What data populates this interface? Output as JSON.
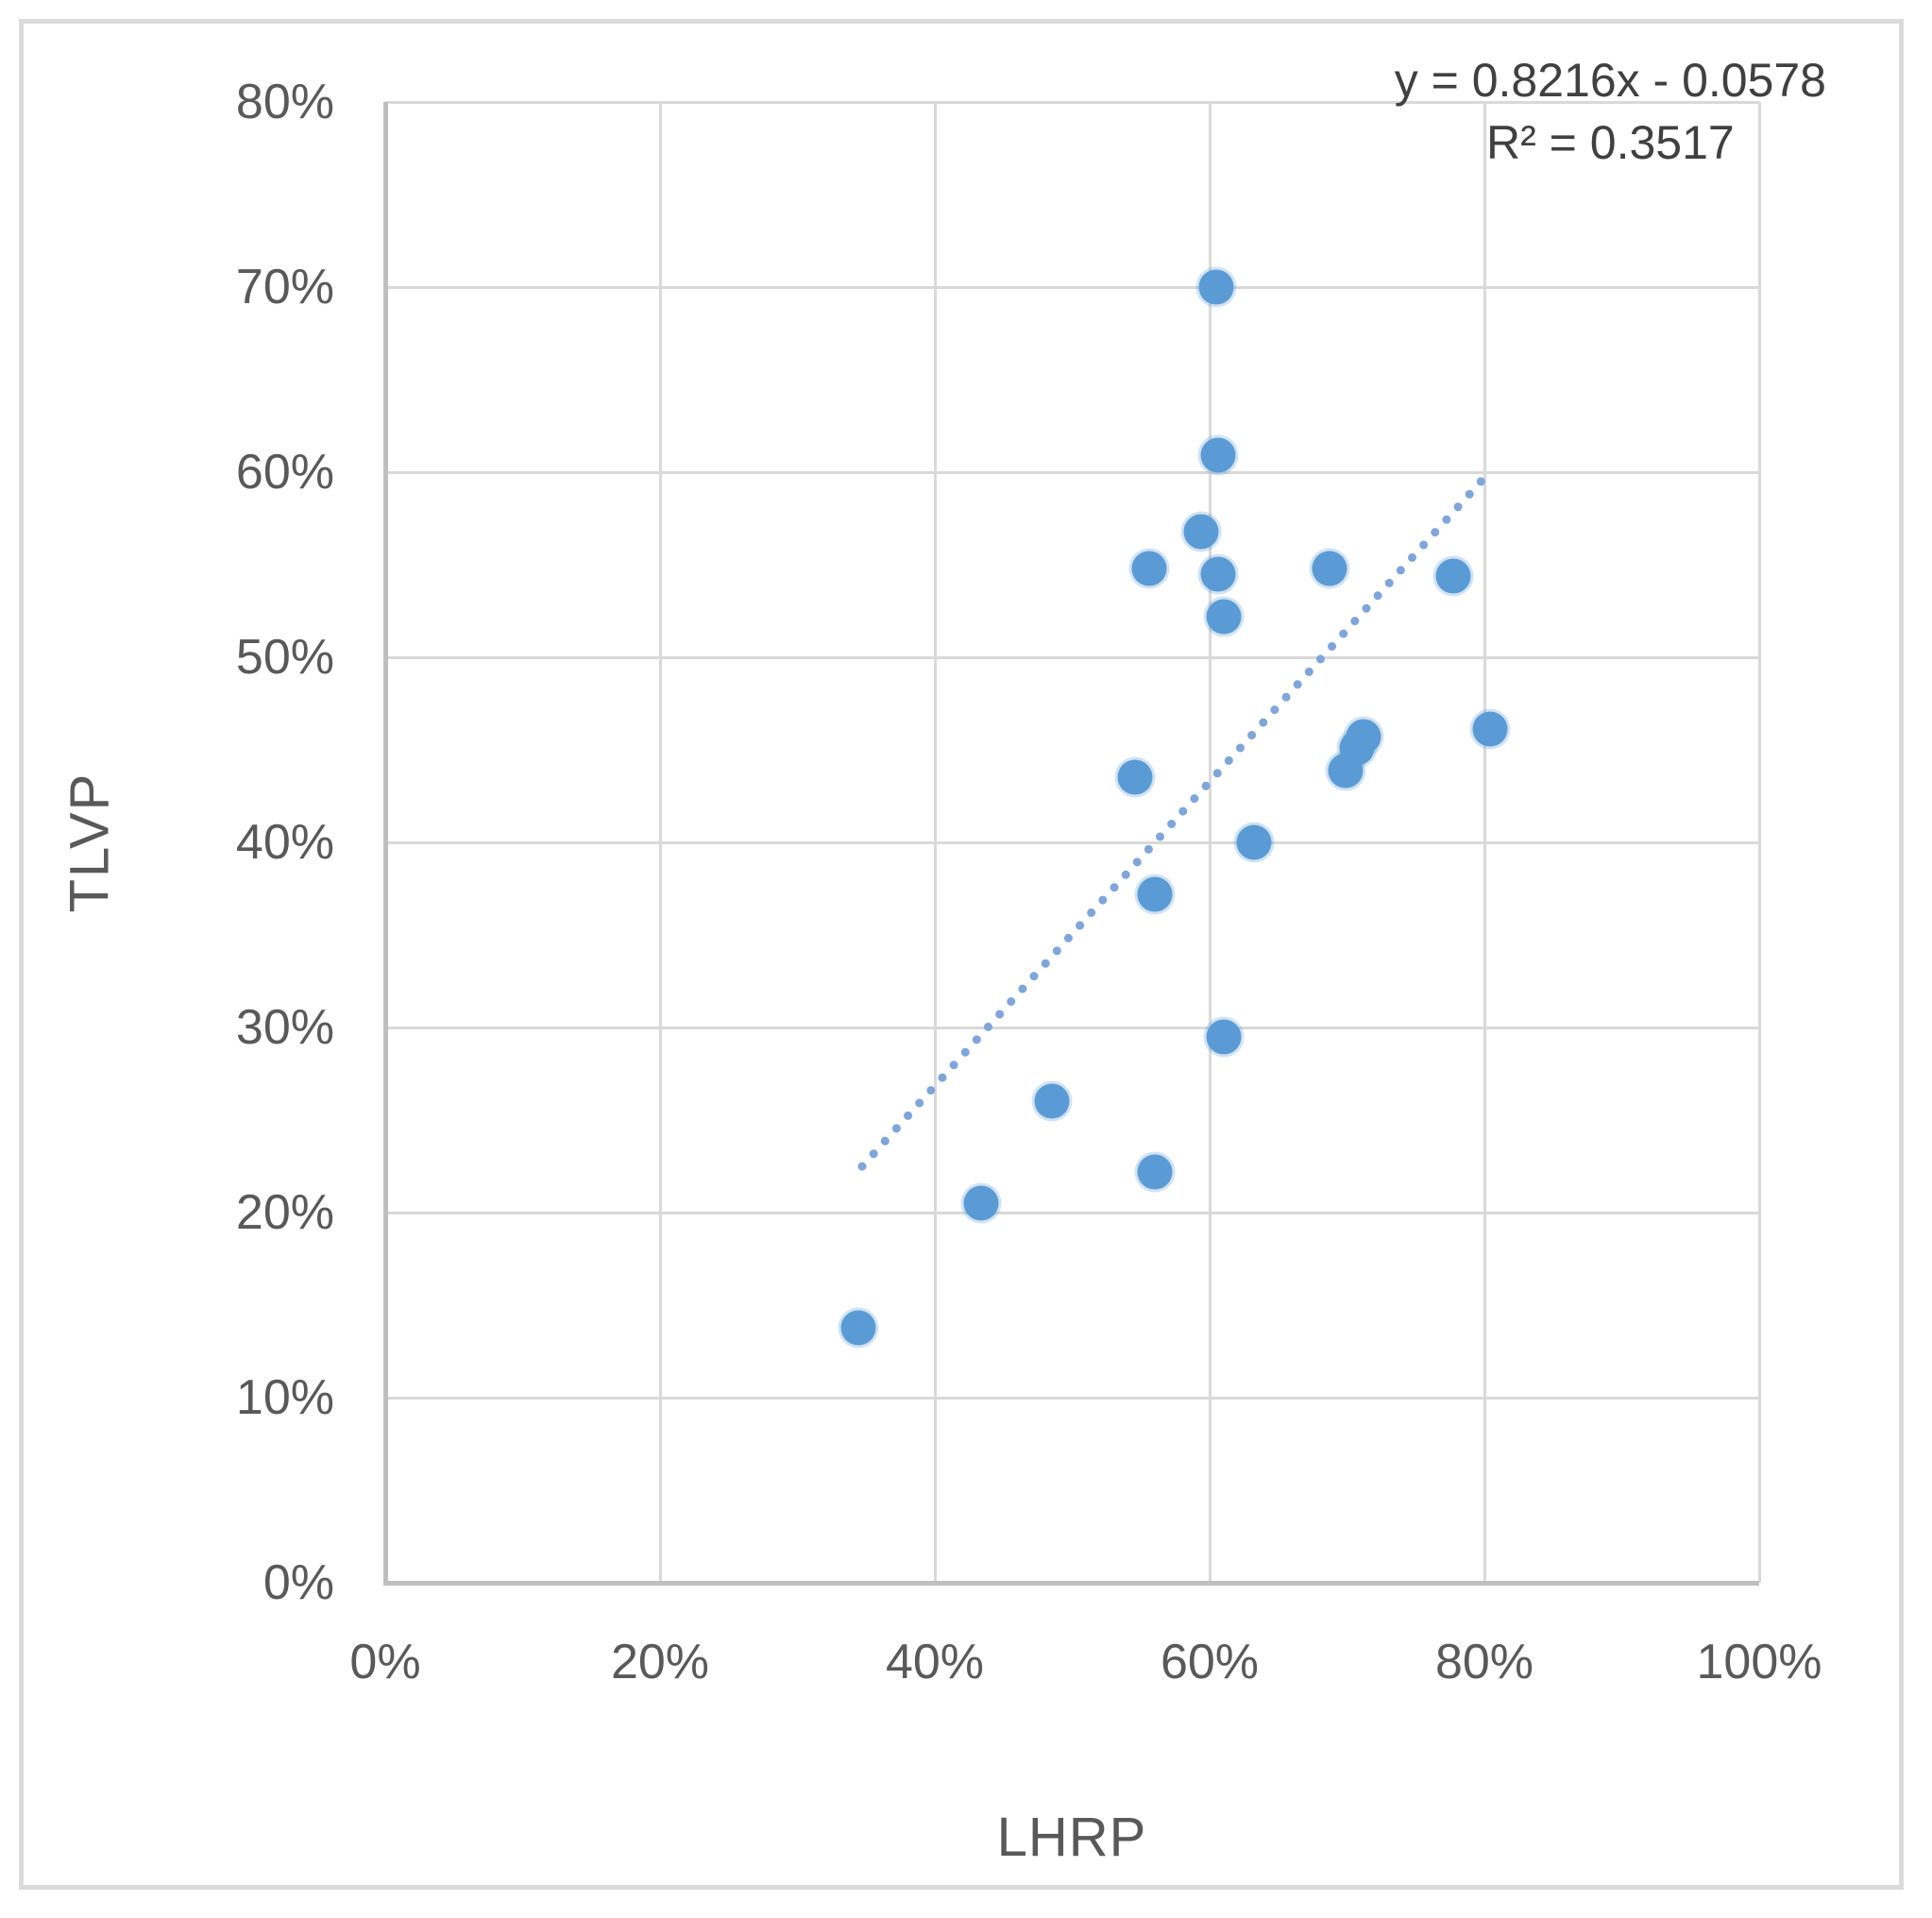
{
  "chart_data": {
    "type": "scatter",
    "xlabel": "LHRP",
    "ylabel": "TLVP",
    "x_ticks": [
      "0%",
      "20%",
      "40%",
      "60%",
      "80%",
      "100%"
    ],
    "y_ticks": [
      "0%",
      "10%",
      "20%",
      "30%",
      "40%",
      "50%",
      "60%",
      "70%",
      "80%"
    ],
    "xlim": [
      0,
      100
    ],
    "ylim": [
      0,
      80
    ],
    "grid": true,
    "legend_position": "none",
    "points": [
      {
        "x": 60.5,
        "y": 70.0
      },
      {
        "x": 60.6,
        "y": 60.9
      },
      {
        "x": 59.4,
        "y": 56.8
      },
      {
        "x": 55.6,
        "y": 54.8
      },
      {
        "x": 60.6,
        "y": 54.5
      },
      {
        "x": 68.7,
        "y": 54.8
      },
      {
        "x": 77.7,
        "y": 54.4
      },
      {
        "x": 61.0,
        "y": 52.2
      },
      {
        "x": 54.6,
        "y": 43.5
      },
      {
        "x": 63.2,
        "y": 40.0
      },
      {
        "x": 56.0,
        "y": 37.2
      },
      {
        "x": 61.0,
        "y": 29.5
      },
      {
        "x": 69.9,
        "y": 43.9
      },
      {
        "x": 70.7,
        "y": 45.1
      },
      {
        "x": 71.2,
        "y": 45.7
      },
      {
        "x": 80.4,
        "y": 46.1
      },
      {
        "x": 48.5,
        "y": 26.0
      },
      {
        "x": 56.0,
        "y": 22.2
      },
      {
        "x": 43.4,
        "y": 20.5
      },
      {
        "x": 34.4,
        "y": 13.8
      }
    ],
    "trendline": {
      "style": "dotted",
      "slope": 0.8216,
      "intercept": -0.0578,
      "x_start": 34.5,
      "x_end": 80.0,
      "equation_label": "y = 0.8216x - 0.0578",
      "r_squared_label": "R² = 0.3517"
    },
    "colors": {
      "marker": "#5B9BD5",
      "marker_halo": "rgba(91,155,213,0.28)",
      "trendline": "#7FA5DA",
      "gridline": "#D9D9D9",
      "axis_line": "#BFBFBF",
      "tick_text": "#595959",
      "title_text": "#595959",
      "equation_text": "#404040",
      "frame_border": "#DBDBDB"
    }
  }
}
